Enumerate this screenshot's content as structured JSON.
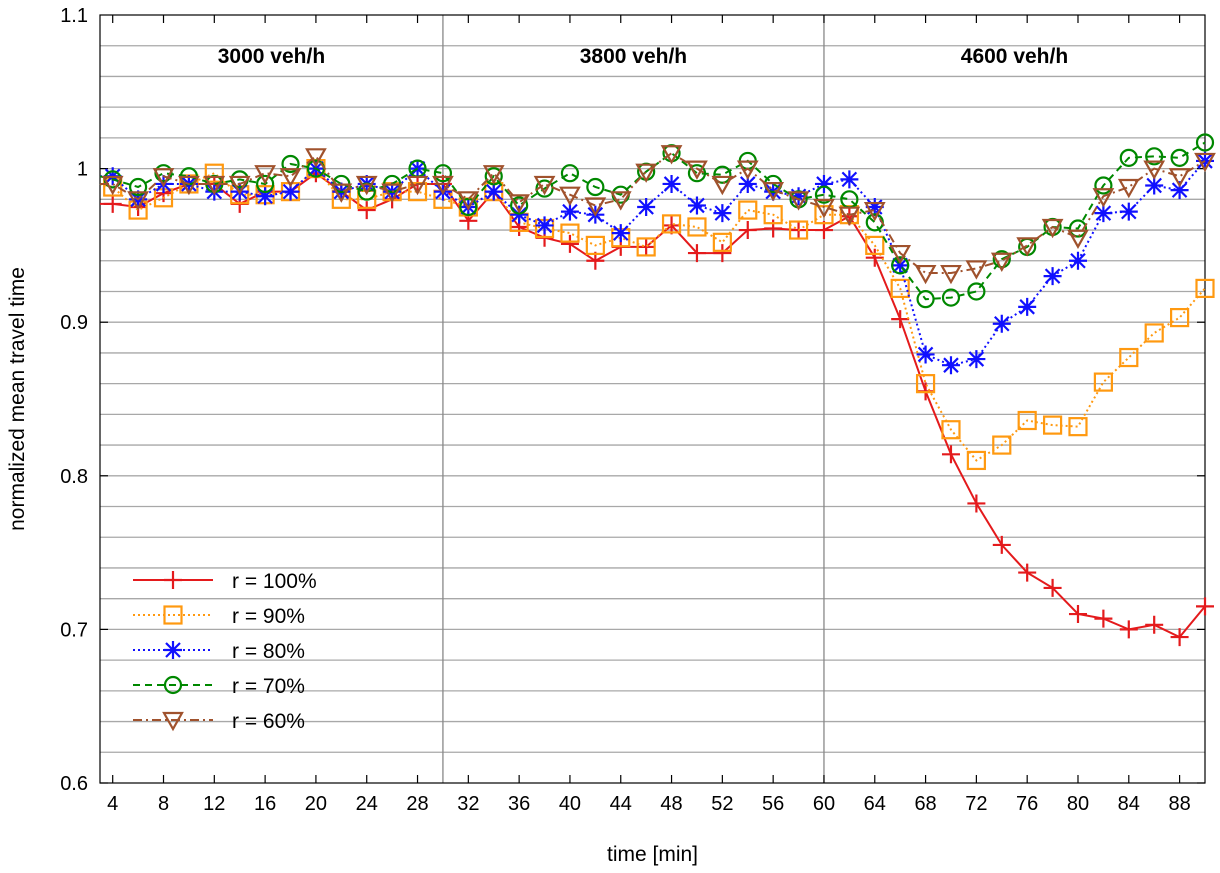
{
  "chart_data": {
    "type": "line",
    "xlabel": "time [min]",
    "ylabel": "normalized mean travel time",
    "xlim": [
      3,
      90
    ],
    "ylim": [
      0.6,
      1.1
    ],
    "xticks": [
      4,
      8,
      12,
      16,
      20,
      24,
      28,
      32,
      36,
      40,
      44,
      48,
      52,
      56,
      60,
      64,
      68,
      72,
      76,
      80,
      84,
      88
    ],
    "yticks": [
      0.6,
      0.7,
      0.8,
      0.9,
      1.0
    ],
    "ytick_labels": [
      "0.6",
      "0.7",
      "0.8",
      "0.9",
      "1",
      "1.1"
    ],
    "ytick_label_values": [
      0.6,
      0.7,
      0.8,
      0.9,
      1.0,
      1.1
    ],
    "grid": true,
    "legend_position": "bottom-left",
    "sections": [
      {
        "label": "3000 veh/h",
        "from": 3,
        "to": 30
      },
      {
        "label": "3800 veh/h",
        "from": 30,
        "to": 60
      },
      {
        "label": "4600 veh/h",
        "from": 60,
        "to": 90
      }
    ],
    "section_dividers": [
      30,
      60
    ],
    "x": [
      3,
      4,
      6,
      8,
      10,
      12,
      14,
      16,
      18,
      20,
      22,
      24,
      26,
      28,
      30,
      32,
      34,
      36,
      38,
      40,
      42,
      44,
      46,
      48,
      50,
      52,
      54,
      56,
      58,
      60,
      62,
      64,
      66,
      68,
      70,
      72,
      74,
      76,
      78,
      80,
      82,
      84,
      86,
      88,
      90
    ],
    "series": [
      {
        "name": "r = 100%",
        "color": "#e41a1c",
        "marker": "plus",
        "dash": "solid",
        "values": [
          0.977,
          0.977,
          0.975,
          0.984,
          0.99,
          0.99,
          0.977,
          0.985,
          0.985,
          0.997,
          0.985,
          0.973,
          0.98,
          0.99,
          0.99,
          0.966,
          0.985,
          0.962,
          0.955,
          0.951,
          0.94,
          0.949,
          0.949,
          0.963,
          0.945,
          0.945,
          0.96,
          0.961,
          0.96,
          0.96,
          0.969,
          0.942,
          0.902,
          0.855,
          0.814,
          0.782,
          0.755,
          0.737,
          0.727,
          0.71,
          0.707,
          0.7,
          0.703,
          0.695,
          0.715
        ]
      },
      {
        "name": "r = 90%",
        "color": "#ff9910",
        "marker": "square",
        "dash": "dotted",
        "values": [
          0.99,
          0.988,
          0.973,
          0.981,
          0.99,
          0.997,
          0.983,
          0.983,
          0.985,
          1.0,
          0.98,
          0.98,
          0.985,
          0.985,
          0.98,
          0.975,
          0.985,
          0.965,
          0.961,
          0.958,
          0.95,
          0.955,
          0.949,
          0.964,
          0.962,
          0.952,
          0.973,
          0.97,
          0.96,
          0.97,
          0.97,
          0.95,
          0.922,
          0.86,
          0.83,
          0.81,
          0.82,
          0.836,
          0.833,
          0.832,
          0.861,
          0.877,
          0.893,
          0.903,
          0.922
        ]
      },
      {
        "name": "r = 80%",
        "color": "#1010ff",
        "marker": "star",
        "dash": "dotted",
        "values": [
          0.995,
          0.995,
          0.98,
          0.99,
          0.99,
          0.985,
          0.985,
          0.982,
          0.985,
          1.0,
          0.985,
          0.99,
          0.985,
          1.0,
          0.985,
          0.975,
          0.985,
          0.97,
          0.963,
          0.972,
          0.97,
          0.958,
          0.975,
          0.99,
          0.976,
          0.971,
          0.99,
          0.985,
          0.982,
          0.99,
          0.993,
          0.975,
          0.937,
          0.879,
          0.872,
          0.876,
          0.899,
          0.91,
          0.93,
          0.94,
          0.971,
          0.972,
          0.989,
          0.986,
          1.005
        ]
      },
      {
        "name": "r = 70%",
        "color": "#008800",
        "marker": "circle",
        "dash": "dashed",
        "values": [
          0.995,
          0.993,
          0.988,
          0.997,
          0.995,
          0.99,
          0.993,
          0.99,
          1.003,
          1.0,
          0.99,
          0.985,
          0.99,
          1.0,
          0.997,
          0.975,
          0.995,
          0.976,
          0.987,
          0.997,
          0.988,
          0.983,
          0.998,
          1.01,
          0.997,
          0.996,
          1.005,
          0.99,
          0.98,
          0.983,
          0.98,
          0.965,
          0.937,
          0.915,
          0.916,
          0.92,
          0.941,
          0.949,
          0.962,
          0.961,
          0.989,
          1.007,
          1.008,
          1.007,
          1.017
        ]
      },
      {
        "name": "r = 60%",
        "color": "#a0522d",
        "marker": "triangle-down",
        "dash": "dashdot",
        "values": [
          0.99,
          0.99,
          0.98,
          0.995,
          0.99,
          0.99,
          0.99,
          0.997,
          0.995,
          1.008,
          0.985,
          0.99,
          0.985,
          0.99,
          0.99,
          0.98,
          0.997,
          0.978,
          0.99,
          0.983,
          0.976,
          0.98,
          0.998,
          1.01,
          1.0,
          0.99,
          1.0,
          0.986,
          0.98,
          0.975,
          0.97,
          0.973,
          0.945,
          0.932,
          0.932,
          0.935,
          0.94,
          0.95,
          0.962,
          0.955,
          0.982,
          0.988,
          1.0,
          0.995,
          1.005
        ]
      }
    ]
  }
}
